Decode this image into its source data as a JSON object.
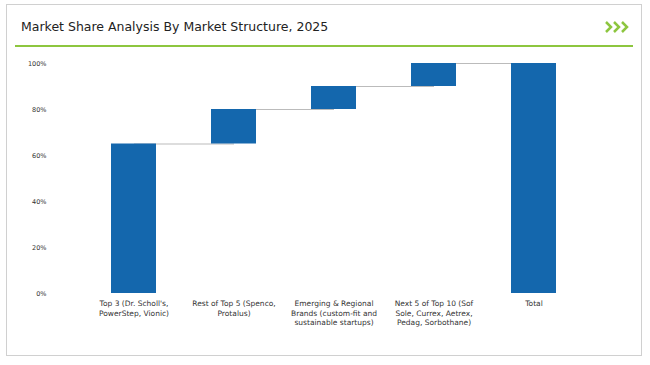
{
  "chart_data": {
    "type": "waterfall",
    "title": "Market Share Analysis By Market Structure, 2025",
    "categories": [
      "Top 3 (Dr. Scholl's, PowerStep, Vionic)",
      "Rest of Top 5 (Spenco, Protalus)",
      "Emerging & Regional Brands (custom-fit and sustainable startups)",
      "Next 5 of Top 10 (Sof Sole, Currex, Aetrex, Pedag, Sorbothane)",
      "Total"
    ],
    "values": [
      65,
      15,
      10,
      10,
      100
    ],
    "color": "#1467ad",
    "ylim": [
      0,
      100
    ],
    "yticks": [
      {
        "value": 0,
        "label": "0%"
      },
      {
        "value": 20,
        "label": "20%"
      },
      {
        "value": 40,
        "label": "40%"
      },
      {
        "value": 60,
        "label": "60%"
      },
      {
        "value": 80,
        "label": "80%"
      },
      {
        "value": 100,
        "label": "100%"
      }
    ],
    "grid": false
  }
}
